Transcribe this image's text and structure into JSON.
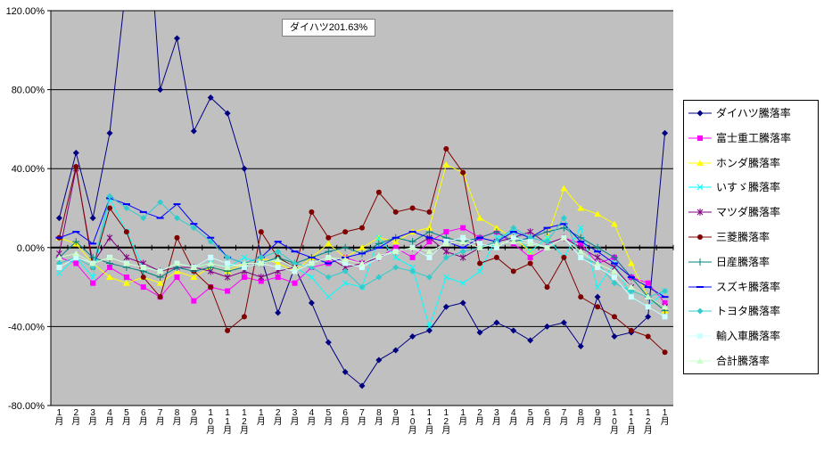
{
  "chart_data": {
    "type": "line",
    "title": "",
    "annotation": "ダイハツ201.63%",
    "plot_bg": "#c0c0c0",
    "grid": true,
    "legend_position": "right",
    "y_axis": {
      "min": -80,
      "max": 120,
      "step": 40,
      "tick_labels": [
        "120.00%",
        "80.00%",
        "40.00%",
        "0.00%",
        "-40.00%",
        "-80.00%"
      ]
    },
    "x_labels": [
      "1月",
      "2月",
      "3月",
      "4月",
      "5月",
      "6月",
      "7月",
      "8月",
      "9月",
      "10月",
      "11月",
      "12月",
      "1月",
      "2月",
      "3月",
      "4月",
      "5月",
      "6月",
      "7月",
      "8月",
      "9月",
      "10月",
      "11月",
      "12月",
      "1月",
      "2月",
      "3月",
      "4月",
      "5月",
      "6月",
      "7月",
      "8月",
      "9月",
      "10月",
      "11月",
      "12月",
      "1月"
    ],
    "series": [
      {
        "name": "ダイハツ騰落率",
        "color": "#000080",
        "marker": "diamond",
        "values": [
          15,
          48,
          15,
          58,
          135,
          201.63,
          80,
          106,
          59,
          76,
          68,
          40,
          -5,
          -33,
          -10,
          -28,
          -48,
          -63,
          -70,
          -57,
          -52,
          -45,
          -42,
          -30,
          -28,
          -43,
          -38,
          -42,
          -47,
          -40,
          -38,
          -50,
          -25,
          -45,
          -43,
          -35,
          58
        ]
      },
      {
        "name": "富士重工騰落率",
        "color": "#ff00ff",
        "marker": "square",
        "values": [
          -5,
          -8,
          -18,
          -10,
          -15,
          -20,
          -25,
          -15,
          -27,
          -20,
          -22,
          -15,
          -17,
          -15,
          -18,
          -10,
          -8,
          -5,
          -8,
          -5,
          0,
          -5,
          3,
          8,
          10,
          5,
          8,
          2,
          -5,
          0,
          5,
          2,
          -8,
          -5,
          -15,
          -18,
          -28
        ]
      },
      {
        "name": "ホンダ騰落率",
        "color": "#ffff00",
        "marker": "triangle",
        "values": [
          5,
          2,
          -8,
          -15,
          -18,
          -15,
          -18,
          -12,
          -15,
          -10,
          -12,
          -8,
          -5,
          -8,
          -12,
          -5,
          2,
          -5,
          0,
          5,
          3,
          8,
          10,
          42,
          38,
          15,
          10,
          5,
          -2,
          5,
          30,
          20,
          17,
          12,
          -8,
          -25,
          -32
        ]
      },
      {
        "name": "いすゞ騰落率",
        "color": "#00ffff",
        "marker": "x",
        "values": [
          -13,
          -5,
          -15,
          25,
          8,
          -10,
          -12,
          -8,
          -10,
          -8,
          -10,
          -5,
          -8,
          -5,
          -10,
          -15,
          -25,
          -18,
          -20,
          5,
          -5,
          -10,
          -40,
          -15,
          -18,
          -12,
          5,
          8,
          -2,
          5,
          -5,
          10,
          -20,
          -8,
          -25,
          -30,
          -22
        ]
      },
      {
        "name": "マツダ騰落率",
        "color": "#800080",
        "marker": "asterisk",
        "values": [
          -3,
          40,
          -8,
          5,
          -5,
          -8,
          -12,
          -10,
          -10,
          -12,
          -15,
          -12,
          -15,
          -12,
          -10,
          -8,
          -5,
          -10,
          -8,
          -5,
          -2,
          0,
          5,
          -2,
          -5,
          0,
          3,
          5,
          8,
          2,
          5,
          0,
          -5,
          -10,
          -20,
          -25,
          -30
        ]
      },
      {
        "name": "三菱騰落率",
        "color": "#800000",
        "marker": "circle",
        "values": [
          5,
          41,
          -10,
          20,
          8,
          -15,
          -25,
          5,
          -12,
          -20,
          -42,
          -35,
          8,
          -5,
          -10,
          18,
          5,
          8,
          10,
          28,
          18,
          20,
          18,
          50,
          38,
          -8,
          -5,
          -12,
          -8,
          -20,
          -5,
          -25,
          -30,
          -35,
          -42,
          -45,
          -53
        ]
      },
      {
        "name": "日産騰落率",
        "color": "#008080",
        "marker": "plus",
        "values": [
          -5,
          3,
          -5,
          -8,
          -10,
          -12,
          -15,
          -10,
          -12,
          -10,
          -12,
          -10,
          -8,
          -5,
          -8,
          -5,
          -2,
          0,
          -3,
          2,
          5,
          3,
          8,
          5,
          3,
          5,
          8,
          3,
          5,
          8,
          10,
          5,
          0,
          -5,
          -15,
          -25,
          -32
        ]
      },
      {
        "name": "スズキ騰落率",
        "color": "#0000ff",
        "marker": "dash",
        "values": [
          5,
          8,
          2,
          25,
          22,
          18,
          15,
          22,
          12,
          5,
          -5,
          -8,
          -5,
          3,
          -2,
          -5,
          -8,
          -5,
          -3,
          0,
          5,
          8,
          5,
          3,
          0,
          5,
          3,
          8,
          5,
          10,
          12,
          3,
          -2,
          -8,
          -15,
          -20,
          -25
        ]
      },
      {
        "name": "トヨタ騰落率",
        "color": "#33cccc",
        "marker": "diamond",
        "values": [
          -8,
          -5,
          -10,
          26,
          20,
          15,
          23,
          15,
          10,
          3,
          -5,
          -8,
          -5,
          -2,
          -8,
          -10,
          -15,
          -12,
          -20,
          -15,
          -10,
          -12,
          -15,
          -5,
          -2,
          0,
          3,
          10,
          5,
          3,
          15,
          -5,
          -8,
          -18,
          -22,
          -25,
          -22
        ]
      },
      {
        "name": "輸入車騰落率",
        "color": "#ccffff",
        "marker": "square",
        "values": [
          -10,
          -5,
          -8,
          -5,
          -8,
          -10,
          -12,
          -8,
          -10,
          -5,
          -8,
          -10,
          -8,
          -10,
          -12,
          -8,
          -5,
          -8,
          -10,
          -5,
          -2,
          0,
          -5,
          3,
          5,
          2,
          0,
          5,
          3,
          0,
          5,
          -5,
          -10,
          -15,
          -25,
          -30,
          -35
        ]
      },
      {
        "name": "合計騰落率",
        "color": "#ccffcc",
        "marker": "triangle",
        "values": [
          -5,
          -3,
          -8,
          -5,
          -8,
          -10,
          -12,
          -8,
          -10,
          -8,
          -10,
          -8,
          -8,
          -6,
          -10,
          -8,
          -5,
          -6,
          -8,
          -4,
          -2,
          0,
          -2,
          2,
          3,
          0,
          2,
          3,
          2,
          0,
          5,
          -2,
          -8,
          -12,
          -20,
          -25,
          -30
        ]
      }
    ]
  }
}
